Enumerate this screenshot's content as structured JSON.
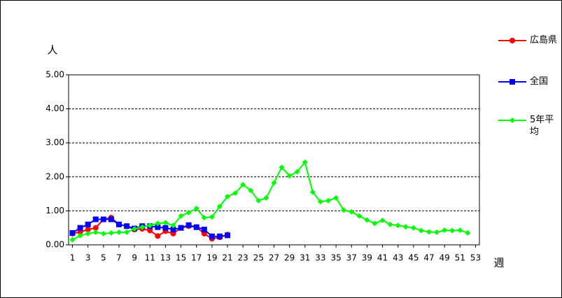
{
  "chart_data": {
    "type": "line",
    "y_label": "人",
    "x_label": "週",
    "x": [
      1,
      2,
      3,
      4,
      5,
      6,
      7,
      8,
      9,
      10,
      11,
      12,
      13,
      14,
      15,
      16,
      17,
      18,
      19,
      20,
      21,
      22,
      23,
      24,
      25,
      26,
      27,
      28,
      29,
      30,
      31,
      32,
      33,
      34,
      35,
      36,
      37,
      38,
      39,
      40,
      41,
      42,
      43,
      44,
      45,
      46,
      47,
      48,
      49,
      50,
      51,
      52,
      53
    ],
    "xlim": [
      0.5,
      53.5
    ],
    "xticks": [
      1,
      3,
      5,
      7,
      9,
      11,
      13,
      15,
      17,
      19,
      21,
      23,
      25,
      27,
      29,
      31,
      33,
      35,
      37,
      39,
      41,
      43,
      45,
      47,
      49,
      51,
      53
    ],
    "ylim": [
      0,
      5
    ],
    "yticks": [
      {
        "value": 0,
        "label": "0.00"
      },
      {
        "value": 1,
        "label": "1.00"
      },
      {
        "value": 2,
        "label": "2.00"
      },
      {
        "value": 3,
        "label": "3.00"
      },
      {
        "value": 4,
        "label": "4.00"
      },
      {
        "value": 5,
        "label": "5.00"
      }
    ],
    "grid": true,
    "series": [
      {
        "name": "広島県",
        "color": "#ff0000",
        "marker": "circle",
        "values": [
          0.33,
          0.38,
          0.45,
          0.5,
          0.75,
          0.8,
          0.6,
          0.55,
          0.45,
          0.47,
          0.42,
          0.26,
          0.4,
          0.33,
          0.5,
          0.55,
          0.52,
          0.33,
          0.18,
          0.22,
          0.3,
          null,
          null,
          null,
          null,
          null,
          null,
          null,
          null,
          null,
          null,
          null,
          null,
          null,
          null,
          null,
          null,
          null,
          null,
          null,
          null,
          null,
          null,
          null,
          null,
          null,
          null,
          null,
          null,
          null,
          null,
          null,
          null
        ]
      },
      {
        "name": "全国",
        "color": "#0000ff",
        "marker": "square",
        "values": [
          0.35,
          0.5,
          0.6,
          0.75,
          0.75,
          0.75,
          0.6,
          0.55,
          0.48,
          0.55,
          0.55,
          0.52,
          0.5,
          0.45,
          0.5,
          0.58,
          0.52,
          0.45,
          0.25,
          0.25,
          0.28,
          null,
          null,
          null,
          null,
          null,
          null,
          null,
          null,
          null,
          null,
          null,
          null,
          null,
          null,
          null,
          null,
          null,
          null,
          null,
          null,
          null,
          null,
          null,
          null,
          null,
          null,
          null,
          null,
          null,
          null,
          null,
          null
        ]
      },
      {
        "name": "5年平均",
        "color": "#00ff00",
        "marker": "diamond",
        "values": [
          0.15,
          0.27,
          0.33,
          0.37,
          0.33,
          0.35,
          0.37,
          0.37,
          0.47,
          0.52,
          0.57,
          0.63,
          0.65,
          0.57,
          0.85,
          0.95,
          1.07,
          0.8,
          0.82,
          1.13,
          1.42,
          1.52,
          1.77,
          1.6,
          1.3,
          1.38,
          1.82,
          2.28,
          2.03,
          2.15,
          2.43,
          1.55,
          1.27,
          1.3,
          1.38,
          1.02,
          0.97,
          0.85,
          0.73,
          0.63,
          0.72,
          0.6,
          0.57,
          0.53,
          0.5,
          0.42,
          0.38,
          0.37,
          0.43,
          0.42,
          0.43,
          0.35,
          null
        ]
      }
    ]
  }
}
